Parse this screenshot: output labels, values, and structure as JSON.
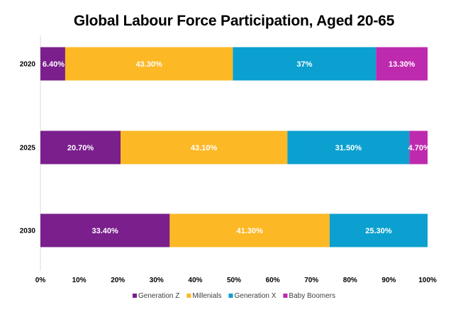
{
  "chart_data": {
    "type": "bar",
    "orientation": "horizontal",
    "stacked": true,
    "title": "Global Labour Force Participation, Aged 20-65",
    "categories": [
      "2020",
      "2025",
      "2030"
    ],
    "series": [
      {
        "name": "Generation Z",
        "color": "#7A1F8C",
        "values": [
          6.4,
          20.7,
          33.4
        ],
        "labels": [
          "6.40%",
          "20.70%",
          "33.40%"
        ]
      },
      {
        "name": "Millenials",
        "color": "#FDB825",
        "values": [
          43.3,
          43.1,
          41.3
        ],
        "labels": [
          "43.30%",
          "43.10%",
          "41.30%"
        ]
      },
      {
        "name": "Generation X",
        "color": "#0BA0CF",
        "values": [
          37,
          31.5,
          25.3
        ],
        "labels": [
          "37%",
          "31.50%",
          "25.30%"
        ]
      },
      {
        "name": "Baby Boomers",
        "color": "#BE2AAE",
        "values": [
          13.3,
          4.7,
          0
        ],
        "labels": [
          "13.30%",
          "4.70%",
          ""
        ]
      }
    ],
    "xlim": [
      0,
      100
    ],
    "xticks": [
      "0%",
      "10%",
      "20%",
      "30%",
      "40%",
      "50%",
      "60%",
      "70%",
      "80%",
      "90%",
      "100%"
    ],
    "xlabel": "",
    "ylabel": "",
    "grid": false,
    "legend": "bottom"
  }
}
